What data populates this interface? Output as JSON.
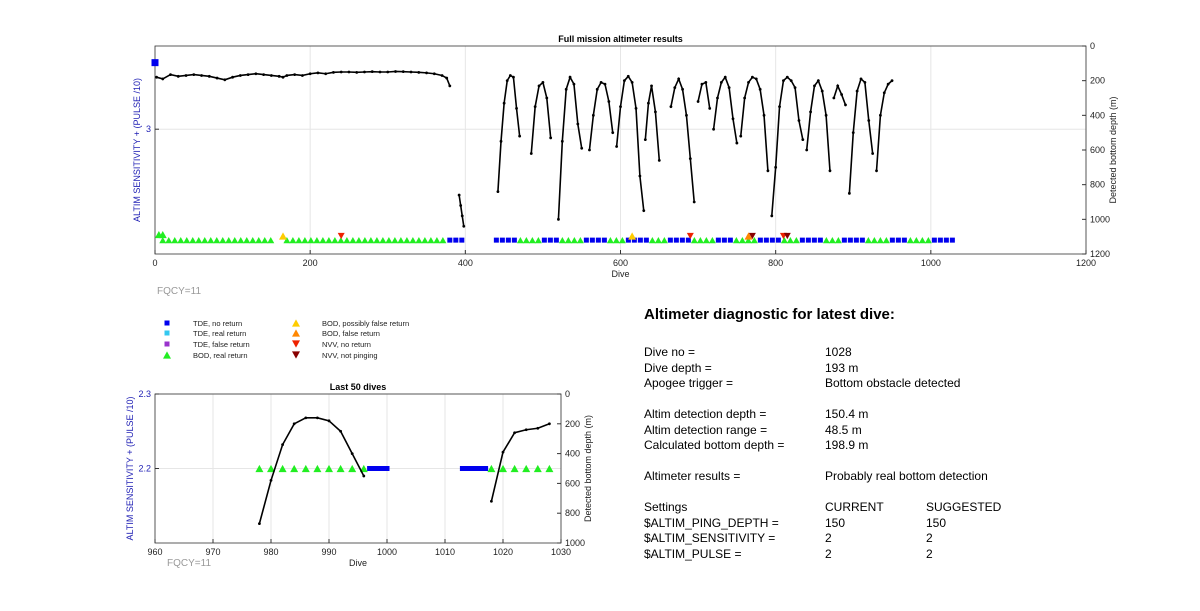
{
  "chart_data": [
    {
      "type": "scatter",
      "title": "Full mission altimeter results",
      "xlabel": "Dive",
      "ylabel_left": "ALTIM SENSITIVITY + (PULSE /10)",
      "ylabel_right": "Detected bottom depth (m)",
      "xlim": [
        0,
        1200
      ],
      "ylim_left": [
        2.1,
        3.6
      ],
      "ylim_right": [
        1200,
        0
      ],
      "x_ticks": [
        "0",
        "200",
        "400",
        "600",
        "800",
        "1000",
        "1200"
      ],
      "y_left_ticks": [
        "3"
      ],
      "y_right_ticks": [
        "0",
        "200",
        "400",
        "600",
        "800",
        "1000",
        "1200"
      ],
      "grid": true,
      "annotation": "FQCY=11",
      "bottom_depth_segments": [
        {
          "x": [
            2,
            10,
            20,
            30,
            40,
            50,
            60,
            70,
            80,
            90,
            100,
            110,
            120,
            130,
            140,
            150,
            160,
            165,
            170,
            180,
            190,
            200,
            210,
            220,
            230,
            240,
            250,
            260,
            270,
            280,
            290,
            300,
            310,
            320,
            330,
            340,
            350,
            360,
            370,
            376,
            380
          ],
          "y": [
            180,
            190,
            165,
            175,
            170,
            165,
            170,
            175,
            185,
            195,
            180,
            170,
            165,
            160,
            165,
            170,
            175,
            180,
            170,
            165,
            170,
            160,
            155,
            160,
            152,
            150,
            150,
            152,
            150,
            148,
            150,
            150,
            147,
            148,
            150,
            152,
            155,
            160,
            170,
            185,
            230
          ]
        },
        {
          "x": [
            392,
            394,
            396,
            398
          ],
          "y": [
            860,
            920,
            980,
            1040
          ]
        },
        {
          "x": [
            442,
            446,
            450,
            454,
            458,
            462,
            466,
            470
          ],
          "y": [
            840,
            550,
            330,
            200,
            170,
            180,
            360,
            520
          ]
        },
        {
          "x": [
            485,
            490,
            495,
            500,
            505,
            510
          ],
          "y": [
            620,
            350,
            230,
            210,
            300,
            530
          ]
        },
        {
          "x": [
            520,
            525,
            530,
            535,
            540,
            545,
            550
          ],
          "y": [
            1000,
            550,
            250,
            180,
            220,
            450,
            590
          ]
        },
        {
          "x": [
            560,
            565,
            570,
            575,
            580,
            585,
            590
          ],
          "y": [
            600,
            400,
            250,
            210,
            220,
            320,
            500
          ]
        },
        {
          "x": [
            595,
            600,
            605,
            610,
            615,
            620,
            625,
            630
          ],
          "y": [
            580,
            350,
            200,
            175,
            210,
            360,
            750,
            950
          ]
        },
        {
          "x": [
            632,
            636,
            640,
            645,
            650
          ],
          "y": [
            540,
            330,
            230,
            380,
            660
          ]
        },
        {
          "x": [
            665,
            670,
            675,
            680,
            685,
            690,
            695
          ],
          "y": [
            350,
            240,
            190,
            250,
            400,
            650,
            900
          ]
        },
        {
          "x": [
            700,
            705,
            710,
            715
          ],
          "y": [
            320,
            220,
            210,
            360
          ]
        },
        {
          "x": [
            720,
            725,
            730,
            735,
            740,
            745,
            750
          ],
          "y": [
            480,
            300,
            210,
            180,
            240,
            420,
            560
          ]
        },
        {
          "x": [
            755,
            760,
            765,
            770,
            775,
            780,
            785,
            790
          ],
          "y": [
            520,
            300,
            210,
            180,
            190,
            250,
            400,
            720
          ]
        },
        {
          "x": [
            795,
            800,
            805,
            810,
            815,
            820,
            825,
            830,
            835
          ],
          "y": [
            980,
            700,
            350,
            200,
            180,
            200,
            240,
            430,
            540
          ]
        },
        {
          "x": [
            840,
            845,
            850,
            855,
            860,
            865,
            870
          ],
          "y": [
            600,
            380,
            230,
            200,
            260,
            400,
            720
          ]
        },
        {
          "x": [
            875,
            880,
            885,
            890
          ],
          "y": [
            300,
            230,
            280,
            340
          ]
        },
        {
          "x": [
            895,
            900,
            905,
            910,
            915,
            920,
            925
          ],
          "y": [
            850,
            500,
            260,
            190,
            210,
            430,
            620
          ]
        },
        {
          "x": [
            930,
            935,
            940,
            945,
            950
          ],
          "y": [
            720,
            400,
            270,
            220,
            200
          ]
        }
      ],
      "markers": [
        {
          "x": 0,
          "y": 3.48,
          "type": "TDE, no return"
        },
        {
          "x": 5,
          "y": 2.24,
          "type": "BOD, real return"
        },
        {
          "x": 10,
          "y": 2.24,
          "type": "BOD, real return"
        },
        {
          "x": 165,
          "y": 2.23,
          "type": "BOD, possibly false return"
        },
        {
          "x": 240,
          "y": 2.23,
          "type": "NVV, no return"
        },
        {
          "x": 615,
          "y": 2.23,
          "type": "BOD, possibly false return"
        },
        {
          "x": 690,
          "y": 2.23,
          "type": "NVV, no return"
        },
        {
          "x": 765,
          "y": 2.23,
          "type": "BOD, false return"
        },
        {
          "x": 770,
          "y": 2.23,
          "type": "NVV, not pinging"
        },
        {
          "x": 810,
          "y": 2.23,
          "type": "NVV, no return"
        },
        {
          "x": 815,
          "y": 2.23,
          "type": "NVV, not pinging"
        }
      ],
      "marker_bands": [
        {
          "from": 10,
          "to": 150,
          "y": 2.2,
          "type": "BOD, real return"
        },
        {
          "from": 170,
          "to": 375,
          "y": 2.2,
          "type": "BOD, real return"
        },
        {
          "from": 380,
          "to": 398,
          "y": 2.2,
          "type": "TDE, no return"
        },
        {
          "from": 440,
          "to": 1028,
          "y": 2.2,
          "type": "mixed"
        }
      ]
    },
    {
      "type": "scatter",
      "title": "Last 50 dives",
      "xlabel": "Dive",
      "ylabel_left": "ALTIM SENSITIVITY + (PULSE /10)",
      "ylabel_right": "Detected bottom depth (m)",
      "xlim": [
        960,
        1030
      ],
      "ylim_left": [
        2.1,
        2.3
      ],
      "ylim_right": [
        1000,
        0
      ],
      "x_ticks": [
        "960",
        "970",
        "980",
        "990",
        "1000",
        "1010",
        "1020",
        "1030"
      ],
      "y_left_ticks": [
        "2.2",
        "2.3"
      ],
      "y_right_ticks": [
        "0",
        "200",
        "400",
        "600",
        "800",
        "1000"
      ],
      "grid": true,
      "annotation": "FQCY=11",
      "bottom_depth_segments": [
        {
          "x": [
            978,
            980,
            982,
            984,
            986,
            988,
            990,
            992,
            994,
            996
          ],
          "y": [
            870,
            580,
            340,
            200,
            160,
            160,
            180,
            250,
            400,
            550
          ]
        },
        {
          "x": [
            1018,
            1020,
            1022,
            1024,
            1026,
            1028
          ],
          "y": [
            720,
            390,
            260,
            240,
            230,
            200
          ]
        }
      ],
      "bod_real_x": [
        978,
        980,
        982,
        984,
        986,
        988,
        990,
        992,
        994,
        996,
        1018,
        1020,
        1022,
        1024,
        1026,
        1028
      ],
      "tde_no_return_bands": [
        {
          "from": 997,
          "to": 1000
        },
        {
          "from": 1013,
          "to": 1017
        }
      ]
    }
  ],
  "legend": [
    {
      "label": "TDE, no return",
      "shape": "square",
      "color": "#0000ee"
    },
    {
      "label": "TDE, real return",
      "shape": "square",
      "color": "#33c8f0"
    },
    {
      "label": "TDE, false return",
      "shape": "square",
      "color": "#9933cc"
    },
    {
      "label": "BOD, real return",
      "shape": "triangle-up",
      "color": "#22ee22"
    },
    {
      "label": "BOD, possibly false return",
      "shape": "triangle-up",
      "color": "#ffcc00"
    },
    {
      "label": "BOD, false return",
      "shape": "triangle-up",
      "color": "#ff8800"
    },
    {
      "label": "NVV, no return",
      "shape": "triangle-down",
      "color": "#ee2200"
    },
    {
      "label": "NVV, not pinging",
      "shape": "triangle-down",
      "color": "#880000"
    }
  ],
  "diagnostic": {
    "title": "Altimeter diagnostic for latest dive:",
    "dive_no_label": "Dive no =",
    "dive_no": "1028",
    "dive_depth_label": "Dive depth =",
    "dive_depth": "193 m",
    "apogee_label": "Apogee trigger =",
    "apogee": "Bottom obstacle detected",
    "altim_det_depth_label": "Altim detection depth =",
    "altim_det_depth": "150.4 m",
    "altim_det_range_label": "Altim detection range =",
    "altim_det_range": "48.5 m",
    "calc_bottom_label": "Calculated bottom depth =",
    "calc_bottom": "198.9 m",
    "results_label": "Altimeter results =",
    "results": "Probably real bottom detection",
    "settings_label": "Settings",
    "current_label": "CURRENT",
    "suggested_label": "SUGGESTED",
    "settings": [
      {
        "name": "$ALTIM_PING_DEPTH =",
        "current": "150",
        "suggested": "150"
      },
      {
        "name": "$ALTIM_SENSITIVITY =",
        "current": "2",
        "suggested": "2"
      },
      {
        "name": "$ALTIM_PULSE =",
        "current": "2",
        "suggested": "2"
      }
    ]
  },
  "colors": {
    "line": "#000000",
    "axis_label_left": "#1f1fb4",
    "grid": "#e6e6e6",
    "fqcy": "#999999"
  }
}
